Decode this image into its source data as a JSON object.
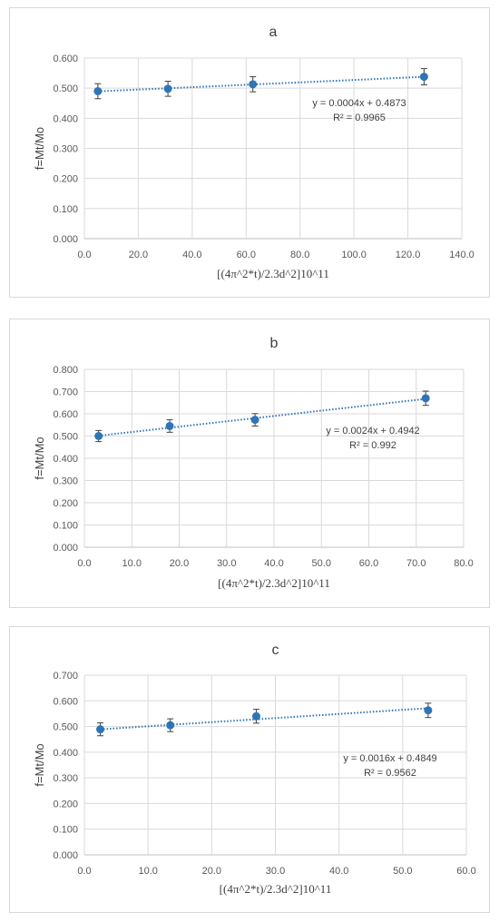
{
  "chart_data": [
    {
      "type": "scatter",
      "title": "a",
      "xlabel": "[(4π^2*t)/2.3d^2]10^11",
      "ylabel": "f=Mt/Mo",
      "xlim": [
        0,
        140
      ],
      "ylim": [
        0,
        0.6
      ],
      "x_ticks": [
        "0.0",
        "20.0",
        "40.0",
        "60.0",
        "80.0",
        "100.0",
        "120.0",
        "140.0"
      ],
      "y_ticks": [
        "0.000",
        "0.100",
        "0.200",
        "0.300",
        "0.400",
        "0.500",
        "0.600"
      ],
      "grid": true,
      "color": "#2e75b6",
      "series": [
        {
          "x": [
            5,
            31,
            62.5,
            126
          ],
          "y": [
            0.49,
            0.498,
            0.513,
            0.538
          ],
          "error": [
            0.025,
            0.025,
            0.025,
            0.027
          ]
        }
      ],
      "trendline": {
        "slope": 0.0004,
        "intercept": 0.4873,
        "equation": "y = 0.0004x + 0.4873",
        "r2": "R² = 0.9965"
      }
    },
    {
      "type": "scatter",
      "title": "b",
      "xlabel": "[(4π^2*t)/2.3d^2]10^11",
      "ylabel": "f=Mt/Mo",
      "xlim": [
        0,
        80
      ],
      "ylim": [
        0,
        0.8
      ],
      "x_ticks": [
        "0.0",
        "10.0",
        "20.0",
        "30.0",
        "40.0",
        "50.0",
        "60.0",
        "70.0",
        "80.0"
      ],
      "y_ticks": [
        "0.000",
        "0.100",
        "0.200",
        "0.300",
        "0.400",
        "0.500",
        "0.600",
        "0.700",
        "0.800"
      ],
      "grid": true,
      "color": "#2e75b6",
      "series": [
        {
          "x": [
            3,
            18,
            36,
            72
          ],
          "y": [
            0.5,
            0.545,
            0.573,
            0.67
          ],
          "error": [
            0.025,
            0.028,
            0.028,
            0.032
          ]
        }
      ],
      "trendline": {
        "slope": 0.0024,
        "intercept": 0.4942,
        "equation": "y = 0.0024x + 0.4942",
        "r2": "R² = 0.992"
      }
    },
    {
      "type": "scatter",
      "title": "c",
      "xlabel": "[(4π^2*t)/2.3d^2]10^11",
      "ylabel": "f=Mt/Mo",
      "xlim": [
        0,
        60
      ],
      "ylim": [
        0,
        0.7
      ],
      "x_ticks": [
        "0.0",
        "10.0",
        "20.0",
        "30.0",
        "40.0",
        "50.0",
        "60.0"
      ],
      "y_ticks": [
        "0.000",
        "0.100",
        "0.200",
        "0.300",
        "0.400",
        "0.500",
        "0.600",
        "0.700"
      ],
      "grid": true,
      "color": "#2e75b6",
      "series": [
        {
          "x": [
            2.5,
            13.5,
            27,
            54
          ],
          "y": [
            0.489,
            0.505,
            0.54,
            0.563
          ],
          "error": [
            0.025,
            0.025,
            0.027,
            0.028
          ]
        }
      ],
      "trendline": {
        "slope": 0.0016,
        "intercept": 0.4849,
        "equation": "y = 0.0016x + 0.4849",
        "r2": "R² = 0.9562"
      }
    }
  ]
}
